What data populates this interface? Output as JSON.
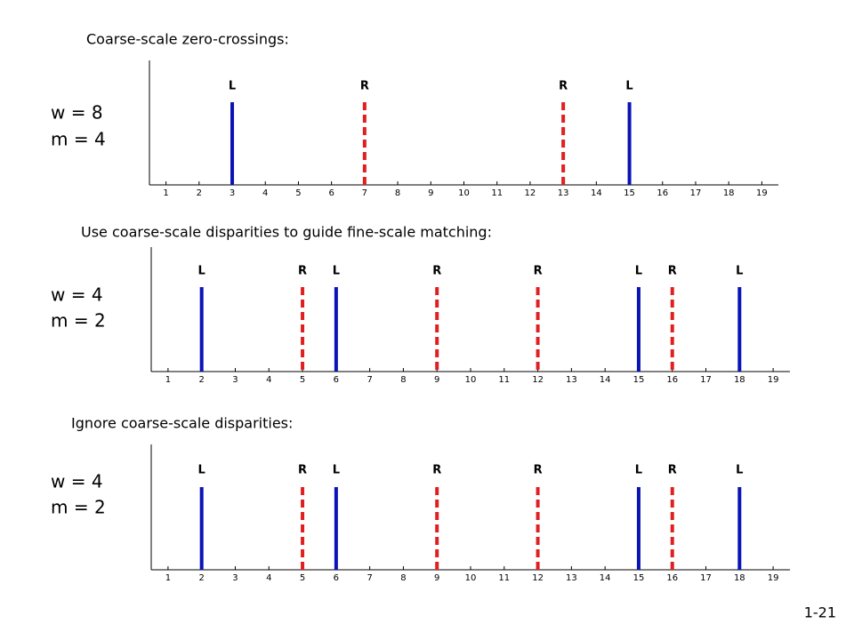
{
  "chart_data": [
    {
      "type": "stem",
      "title": "Coarse-scale zero-crossings:",
      "annotations": [
        "w = 8",
        "m = 4"
      ],
      "xlim": [
        0.5,
        19.5
      ],
      "xticks": [
        1,
        2,
        3,
        4,
        5,
        6,
        7,
        8,
        9,
        10,
        11,
        12,
        13,
        14,
        15,
        16,
        17,
        18,
        19
      ],
      "series": [
        {
          "name": "L",
          "color": "#0a14b4",
          "style": "solid",
          "x": [
            3,
            15
          ]
        },
        {
          "name": "R",
          "color": "#e02020",
          "style": "dashed",
          "x": [
            7,
            13
          ]
        }
      ]
    },
    {
      "type": "stem",
      "title": "Use coarse-scale disparities to guide fine-scale matching:",
      "annotations": [
        "w = 4",
        "m = 2"
      ],
      "xlim": [
        0.5,
        19.5
      ],
      "xticks": [
        1,
        2,
        3,
        4,
        5,
        6,
        7,
        8,
        9,
        10,
        11,
        12,
        13,
        14,
        15,
        16,
        17,
        18,
        19
      ],
      "series": [
        {
          "name": "L",
          "color": "#0a14b4",
          "style": "solid",
          "x": [
            2,
            6,
            15,
            18
          ]
        },
        {
          "name": "R",
          "color": "#e02020",
          "style": "dashed",
          "x": [
            5,
            9,
            12,
            16
          ]
        }
      ]
    },
    {
      "type": "stem",
      "title": "Ignore coarse-scale disparities:",
      "annotations": [
        "w = 4",
        "m = 2"
      ],
      "xlim": [
        0.5,
        19.5
      ],
      "xticks": [
        1,
        2,
        3,
        4,
        5,
        6,
        7,
        8,
        9,
        10,
        11,
        12,
        13,
        14,
        15,
        16,
        17,
        18,
        19
      ],
      "series": [
        {
          "name": "L",
          "color": "#0a14b4",
          "style": "solid",
          "x": [
            2,
            6,
            15,
            18
          ]
        },
        {
          "name": "R",
          "color": "#e02020",
          "style": "dashed",
          "x": [
            5,
            9,
            12,
            16
          ]
        }
      ]
    }
  ],
  "page_number": "1-21"
}
